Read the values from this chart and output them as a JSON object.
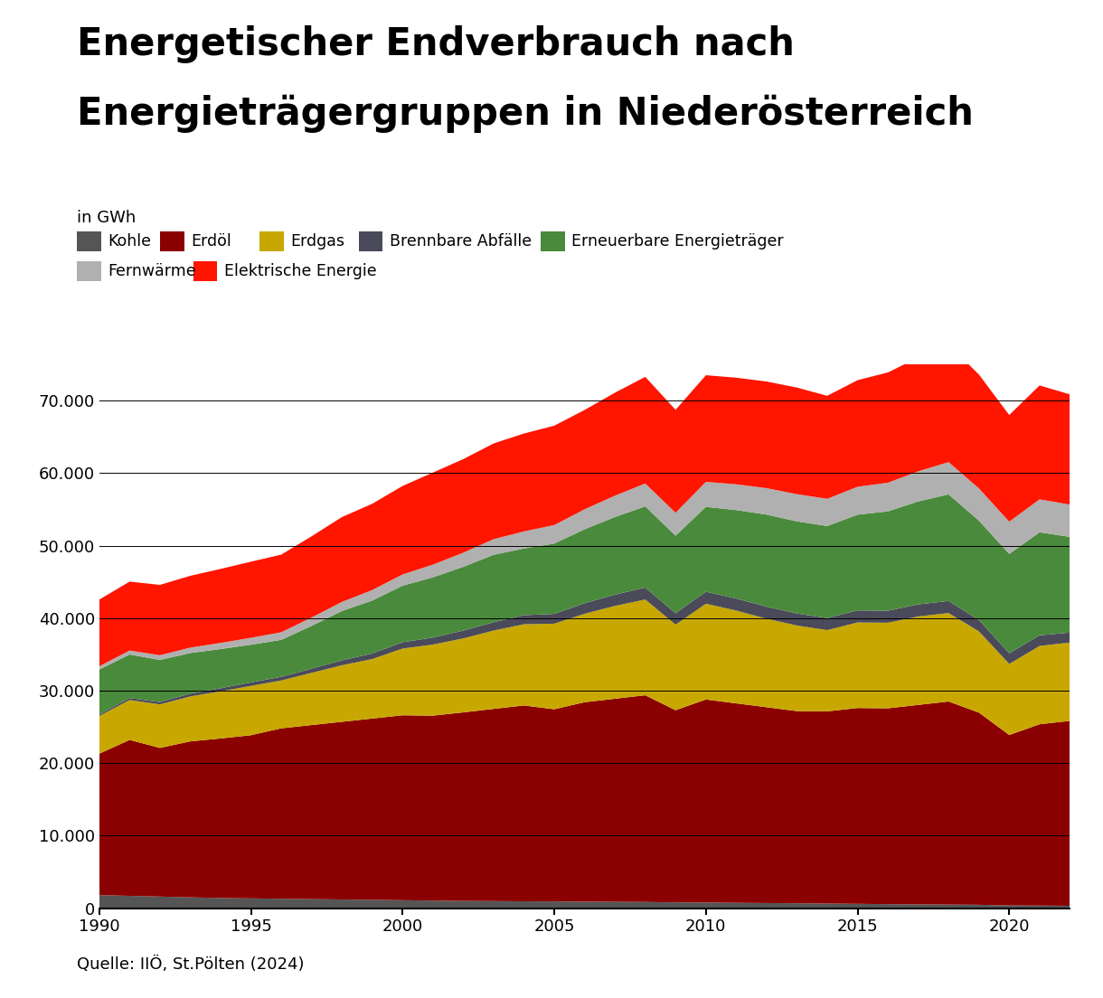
{
  "title_line1": "Energetischer Endverbrauch nach",
  "title_line2": "Energieträgergruppen in Niederösterreich",
  "unit_label": "in GWh",
  "source": "Quelle: IIÖ, St.Pölten (2024)",
  "years": [
    1990,
    1991,
    1992,
    1993,
    1994,
    1995,
    1996,
    1997,
    1998,
    1999,
    2000,
    2001,
    2002,
    2003,
    2004,
    2005,
    2006,
    2007,
    2008,
    2009,
    2010,
    2011,
    2012,
    2013,
    2014,
    2015,
    2016,
    2017,
    2018,
    2019,
    2020,
    2021,
    2022
  ],
  "series_order": [
    "Kohle",
    "Erdöl",
    "Erdgas",
    "Brennbare Abfälle",
    "Erneuerbare Energieträger",
    "Fernwärme",
    "Elektrische Energie"
  ],
  "series": {
    "Kohle": [
      1800,
      1700,
      1600,
      1500,
      1400,
      1350,
      1300,
      1250,
      1200,
      1150,
      1100,
      1050,
      1000,
      980,
      950,
      930,
      900,
      880,
      860,
      800,
      780,
      740,
      710,
      680,
      640,
      600,
      560,
      530,
      500,
      470,
      380,
      360,
      330
    ],
    "Erdöl": [
      19500,
      21500,
      20500,
      21500,
      22000,
      22500,
      23500,
      24000,
      24500,
      25000,
      25500,
      25500,
      26000,
      26500,
      27000,
      26500,
      27500,
      28000,
      28500,
      26500,
      28000,
      27500,
      27000,
      26500,
      26500,
      27000,
      27000,
      27500,
      28000,
      26500,
      23500,
      25000,
      25500
    ],
    "Erdgas": [
      5200,
      5500,
      6000,
      6200,
      6500,
      6800,
      6600,
      7200,
      7800,
      8200,
      9200,
      9800,
      10200,
      10800,
      11200,
      11800,
      12200,
      12800,
      13200,
      11800,
      13200,
      12800,
      12200,
      11800,
      11200,
      11800,
      11800,
      12200,
      12200,
      11200,
      9800,
      10800,
      10800
    ],
    "Brennbare Abfälle": [
      200,
      280,
      330,
      380,
      430,
      480,
      500,
      580,
      680,
      770,
      870,
      970,
      1070,
      1150,
      1250,
      1350,
      1450,
      1550,
      1650,
      1570,
      1660,
      1660,
      1660,
      1660,
      1660,
      1660,
      1660,
      1660,
      1660,
      1570,
      1470,
      1470,
      1370
    ],
    "Erneuerbare Energieträger": [
      6200,
      6000,
      5800,
      5600,
      5400,
      5200,
      5100,
      5900,
      6800,
      7300,
      7800,
      8300,
      8800,
      9300,
      9200,
      9700,
      10200,
      10700,
      11200,
      10700,
      11700,
      12200,
      12700,
      12700,
      12700,
      13200,
      13700,
      14200,
      14700,
      13700,
      13700,
      14200,
      13200
    ],
    "Fernwärme": [
      450,
      550,
      650,
      750,
      850,
      950,
      1050,
      1150,
      1250,
      1450,
      1550,
      1750,
      1950,
      2150,
      2350,
      2550,
      2750,
      2950,
      3150,
      3150,
      3450,
      3550,
      3650,
      3750,
      3750,
      3850,
      3950,
      4150,
      4450,
      4450,
      4450,
      4550,
      4450
    ],
    "Elektrische Energie": [
      9200,
      9500,
      9700,
      9900,
      10200,
      10500,
      10700,
      11200,
      11700,
      11900,
      12200,
      12700,
      12900,
      13200,
      13500,
      13700,
      13700,
      14200,
      14700,
      14200,
      14700,
      14700,
      14700,
      14700,
      14200,
      14700,
      15200,
      15700,
      16200,
      15700,
      14700,
      15700,
      15200
    ]
  },
  "colors": {
    "Kohle": "#555555",
    "Erdöl": "#8B0000",
    "Erdgas": "#C8A800",
    "Brennbare Abfälle": "#4A4A5A",
    "Erneuerbare Energieträger": "#4A8A3C",
    "Fernwärme": "#B0B0B0",
    "Elektrische Energie": "#FF1500"
  },
  "ylim": [
    0,
    75000
  ],
  "yticks": [
    0,
    10000,
    20000,
    30000,
    40000,
    50000,
    60000,
    70000
  ],
  "ytick_labels": [
    "0",
    "10.000",
    "20.000",
    "30.000",
    "40.000",
    "50.000",
    "60.000",
    "70.000"
  ],
  "xticks": [
    1990,
    1995,
    2000,
    2005,
    2010,
    2015,
    2020
  ],
  "background_color": "#FFFFFF",
  "title_fontsize": 30,
  "label_fontsize": 13,
  "tick_fontsize": 13,
  "legend_fontsize": 12.5
}
